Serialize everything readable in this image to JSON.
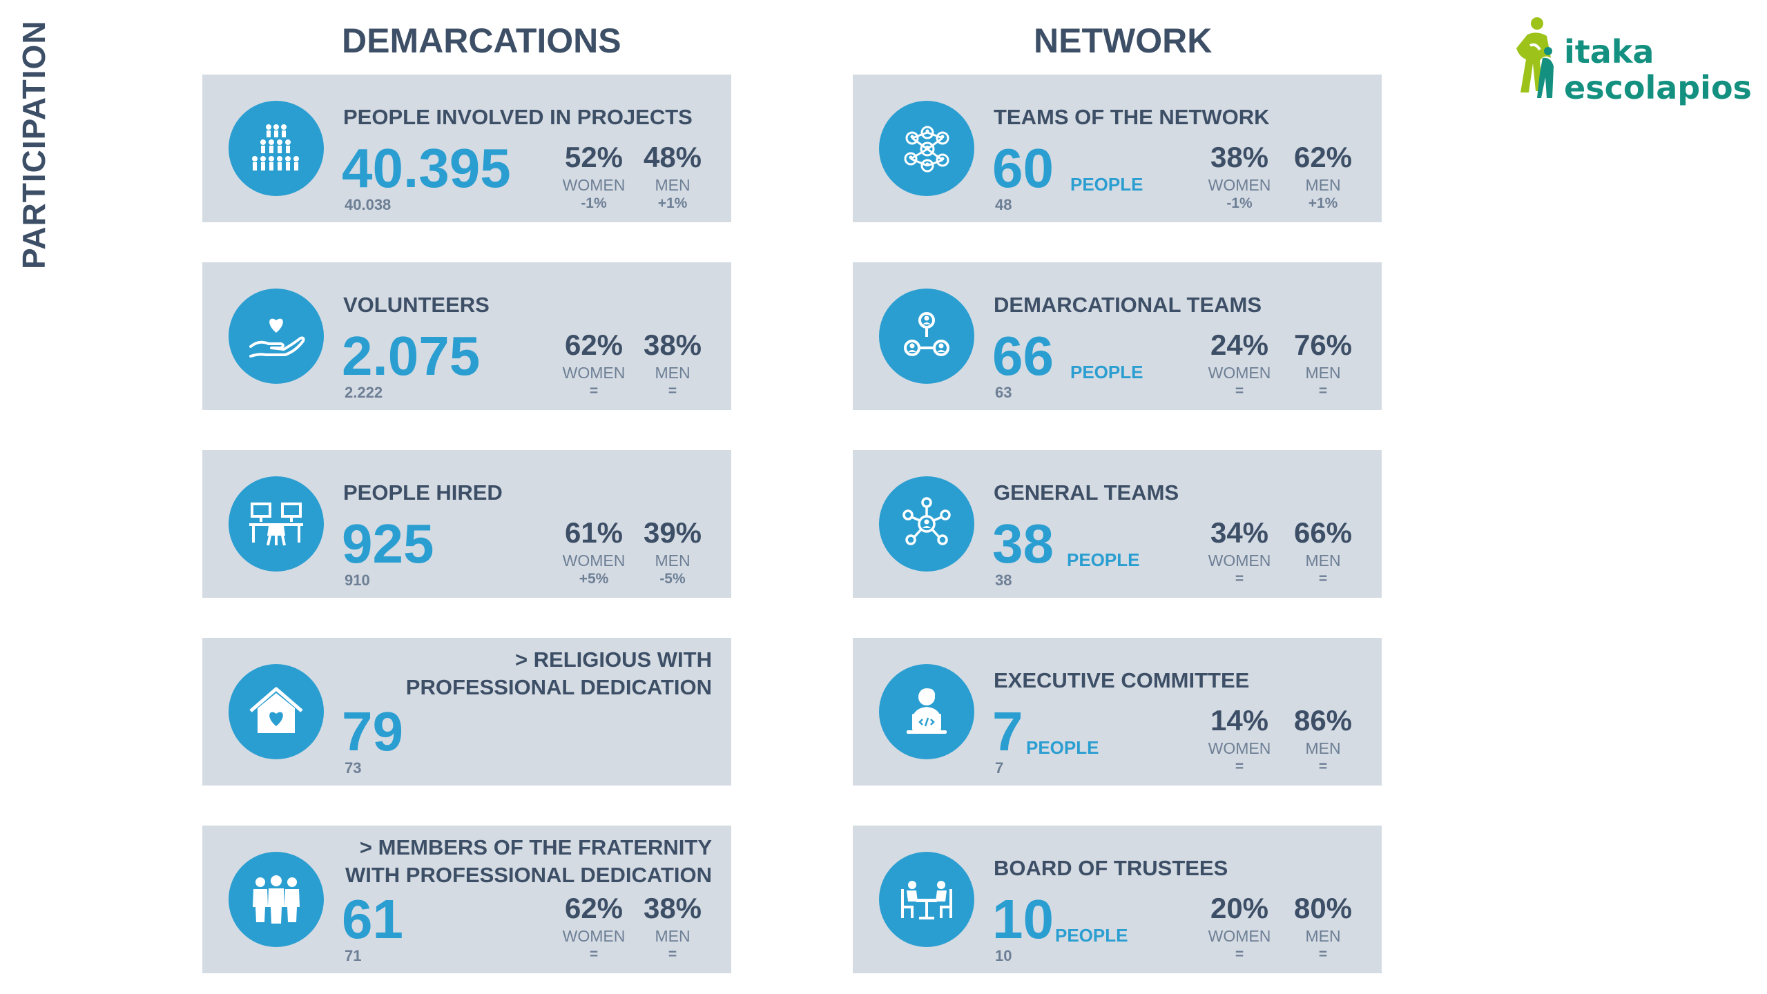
{
  "side_title": "PARTICIPATION",
  "headers": {
    "left": "DEMARCATIONS",
    "right": "NETWORK"
  },
  "logo": {
    "line1": "itaka",
    "line2": "escolapios"
  },
  "labels": {
    "women": "WOMEN",
    "men": "MEN",
    "people": "PEOPLE"
  },
  "colors": {
    "accent": "#2a9ed1",
    "card_bg": "#d5dbe3",
    "text": "#3d4f66",
    "logo_green": "#13907f",
    "logo_lime": "#9dc31a"
  },
  "demarcations": [
    {
      "icon": "crowd-icon",
      "title": "PEOPLE INVOLVED  IN PROJECTS",
      "value": "40.395",
      "previous": "40.038",
      "women_pct": "52%",
      "men_pct": "48%",
      "women_change": "-1%",
      "men_change": "+1%"
    },
    {
      "icon": "volunteer-hand-heart-icon",
      "title": "VOLUNTEERS",
      "value": "2.075",
      "previous": "2.222",
      "women_pct": "62%",
      "men_pct": "38%",
      "women_change": "=",
      "men_change": "="
    },
    {
      "icon": "workstation-icon",
      "title": "PEOPLE HIRED",
      "value": "925",
      "previous": "910",
      "women_pct": "61%",
      "men_pct": "39%",
      "women_change": "+5%",
      "men_change": "-5%"
    },
    {
      "icon": "home-heart-icon",
      "title_line1": "> RELIGIOUS WITH",
      "title_line2": "PROFESSIONAL DEDICATION",
      "value": "79",
      "previous": "73"
    },
    {
      "icon": "group-people-icon",
      "title_line1": "> MEMBERS OF THE FRATERNITY",
      "title_line2": "WITH PROFESSIONAL DEDICATION",
      "value": "61",
      "previous": "71",
      "women_pct": "62%",
      "men_pct": "38%",
      "women_change": "=",
      "men_change": "="
    }
  ],
  "network": [
    {
      "icon": "network-nodes-icon",
      "title": "TEAMS OF THE NETWORK",
      "value": "60",
      "previous": "48",
      "women_pct": "38%",
      "men_pct": "62%",
      "women_change": "-1%",
      "men_change": "+1%"
    },
    {
      "icon": "team-connection-icon",
      "title": "DEMARCATIONAL TEAMS",
      "value": "66",
      "previous": "63",
      "women_pct": "24%",
      "men_pct": "76%",
      "women_change": "=",
      "men_change": "="
    },
    {
      "icon": "hub-icon",
      "title": "GENERAL TEAMS",
      "value": "38",
      "previous": "38",
      "women_pct": "34%",
      "men_pct": "66%",
      "women_change": "=",
      "men_change": "="
    },
    {
      "icon": "person-laptop-icon",
      "title": "EXECUTIVE COMMITTEE",
      "value": "7",
      "previous": "7",
      "women_pct": "14%",
      "men_pct": "86%",
      "women_change": "=",
      "men_change": "="
    },
    {
      "icon": "meeting-table-icon",
      "title": "BOARD OF TRUSTEES",
      "value": "10",
      "previous": "10",
      "women_pct": "20%",
      "men_pct": "80%",
      "women_change": "=",
      "men_change": "="
    }
  ]
}
